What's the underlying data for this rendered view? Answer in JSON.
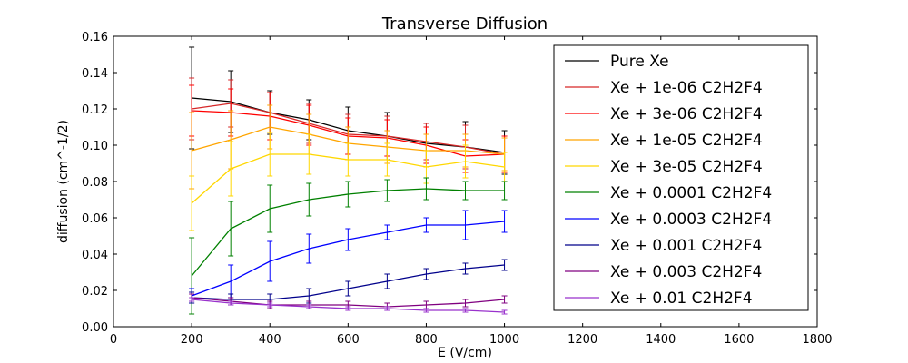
{
  "chart_data": {
    "type": "line",
    "title": "Transverse Diffusion",
    "xlabel": "E (V/cm)",
    "ylabel": "diffusion (cm^-1/2)",
    "xlim": [
      0,
      1800
    ],
    "ylim": [
      0,
      0.16
    ],
    "xticks": [
      0,
      200,
      400,
      600,
      800,
      1000,
      1200,
      1400,
      1600,
      1800
    ],
    "yticks": [
      0.0,
      0.02,
      0.04,
      0.06,
      0.08,
      0.1,
      0.12,
      0.14,
      0.16
    ],
    "xtick_labels": [
      "0",
      "200",
      "400",
      "600",
      "800",
      "1000",
      "1200",
      "1400",
      "1600",
      "1800"
    ],
    "ytick_labels": [
      "0.00",
      "0.02",
      "0.04",
      "0.06",
      "0.08",
      "0.10",
      "0.12",
      "0.14",
      "0.16"
    ],
    "grid": false,
    "legend_position": "top-right",
    "x": [
      200,
      300,
      400,
      500,
      600,
      700,
      800,
      900,
      1000
    ],
    "series": [
      {
        "name": "Pure Xe",
        "color": "#000000",
        "values": [
          0.126,
          0.124,
          0.118,
          0.114,
          0.108,
          0.105,
          0.101,
          0.099,
          0.096
        ],
        "errors": [
          0.028,
          0.017,
          0.012,
          0.011,
          0.013,
          0.013,
          0.011,
          0.014,
          0.012
        ]
      },
      {
        "name": "Xe + 1e-06 C2H2F4",
        "color": "#d62728",
        "values": [
          0.12,
          0.123,
          0.118,
          0.112,
          0.106,
          0.105,
          0.102,
          0.099,
          0.095
        ],
        "errors": [
          0.017,
          0.013,
          0.011,
          0.011,
          0.011,
          0.011,
          0.01,
          0.012,
          0.01
        ]
      },
      {
        "name": "Xe + 3e-06 C2H2F4",
        "color": "#ff0000",
        "values": [
          0.119,
          0.118,
          0.116,
          0.111,
          0.105,
          0.104,
          0.1,
          0.094,
          0.095
        ],
        "errors": [
          0.014,
          0.013,
          0.013,
          0.011,
          0.01,
          0.01,
          0.01,
          0.009,
          0.01
        ]
      },
      {
        "name": "Xe + 1e-05 C2H2F4",
        "color": "#ffa500",
        "values": [
          0.097,
          0.103,
          0.11,
          0.106,
          0.101,
          0.099,
          0.097,
          0.097,
          0.095
        ],
        "errors": [
          0.021,
          0.016,
          0.012,
          0.011,
          0.009,
          0.009,
          0.009,
          0.009,
          0.009
        ]
      },
      {
        "name": "Xe + 3e-05 C2H2F4",
        "color": "#ffd700",
        "values": [
          0.068,
          0.087,
          0.095,
          0.095,
          0.092,
          0.092,
          0.088,
          0.091,
          0.088
        ],
        "errors": [
          0.015,
          0.015,
          0.012,
          0.011,
          0.009,
          0.009,
          0.009,
          0.009,
          0.008
        ]
      },
      {
        "name": "Xe + 0.0001 C2H2F4",
        "color": "#008000",
        "values": [
          0.028,
          0.054,
          0.065,
          0.07,
          0.073,
          0.075,
          0.076,
          0.075,
          0.075
        ],
        "errors": [
          0.021,
          0.015,
          0.013,
          0.009,
          0.007,
          0.006,
          0.006,
          0.005,
          0.005
        ]
      },
      {
        "name": "Xe + 0.0003 C2H2F4",
        "color": "#0000ff",
        "values": [
          0.017,
          0.025,
          0.036,
          0.043,
          0.048,
          0.052,
          0.056,
          0.056,
          0.058
        ],
        "errors": [
          0.004,
          0.009,
          0.011,
          0.008,
          0.006,
          0.004,
          0.004,
          0.008,
          0.006
        ]
      },
      {
        "name": "Xe + 0.001 C2H2F4",
        "color": "#00008b",
        "values": [
          0.016,
          0.015,
          0.015,
          0.017,
          0.021,
          0.025,
          0.029,
          0.032,
          0.034
        ],
        "errors": [
          0.003,
          0.003,
          0.003,
          0.004,
          0.004,
          0.004,
          0.003,
          0.003,
          0.003
        ]
      },
      {
        "name": "Xe + 0.003 C2H2F4",
        "color": "#800080",
        "values": [
          0.016,
          0.014,
          0.012,
          0.012,
          0.012,
          0.011,
          0.012,
          0.013,
          0.015
        ],
        "errors": [
          0.002,
          0.002,
          0.002,
          0.002,
          0.002,
          0.002,
          0.002,
          0.002,
          0.002
        ]
      },
      {
        "name": "Xe + 0.01 C2H2F4",
        "color": "#9932cc",
        "values": [
          0.015,
          0.013,
          0.012,
          0.011,
          0.01,
          0.01,
          0.009,
          0.009,
          0.008
        ],
        "errors": [
          0.001,
          0.001,
          0.001,
          0.001,
          0.001,
          0.001,
          0.001,
          0.001,
          0.001
        ]
      }
    ]
  }
}
